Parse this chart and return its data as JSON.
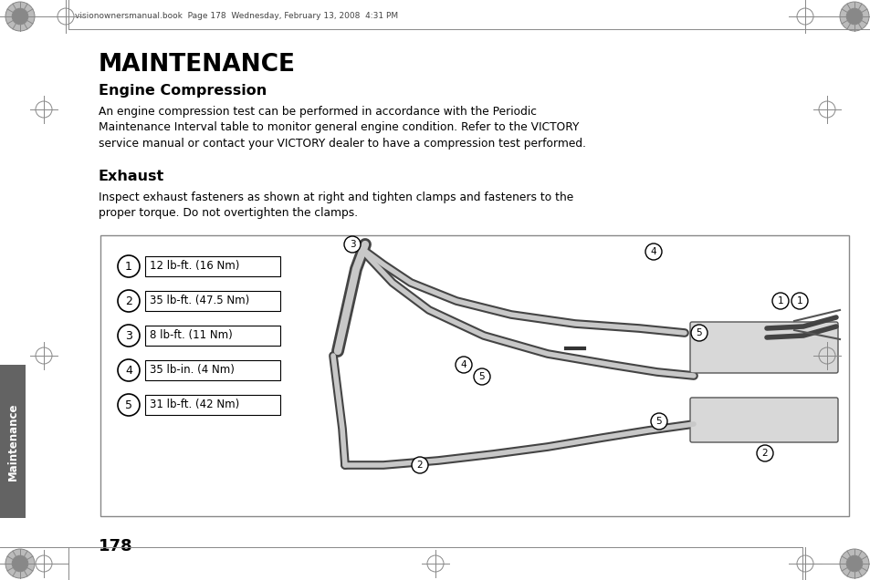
{
  "bg_color": "#ffffff",
  "header_text": "visionownersmanual.book  Page 178  Wednesday, February 13, 2008  4:31 PM",
  "title": "MAINTENANCE",
  "subtitle": "Engine Compression",
  "body1": "An engine compression test can be performed in accordance with the Periodic\nMaintenance Interval table to monitor general engine condition. Refer to the VICTORY\nservice manual or contact your VICTORY dealer to have a compression test performed.",
  "subtitle2": "Exhaust",
  "body2": "Inspect exhaust fasteners as shown at right and tighten clamps and fasteners to the\nproper torque. Do not overtighten the clamps.",
  "legend_items": [
    {
      "num": "1",
      "text": "12 lb-ft. (16 Nm)"
    },
    {
      "num": "2",
      "text": "35 lb-ft. (47.5 Nm)"
    },
    {
      "num": "3",
      "text": "8 lb-ft. (11 Nm)"
    },
    {
      "num": "4",
      "text": "35 lb-in. (4 Nm)"
    },
    {
      "num": "5",
      "text": "31 lb-ft. (42 Nm)"
    }
  ],
  "page_number": "178",
  "sidebar_text": "Maintenance",
  "sidebar_color": "#636363",
  "sidebar_text_color": "#ffffff",
  "diagram_box_border": "#888888",
  "diagram_bg": "#ffffff",
  "header_line_color": "#999999",
  "corner_color": "#888888"
}
